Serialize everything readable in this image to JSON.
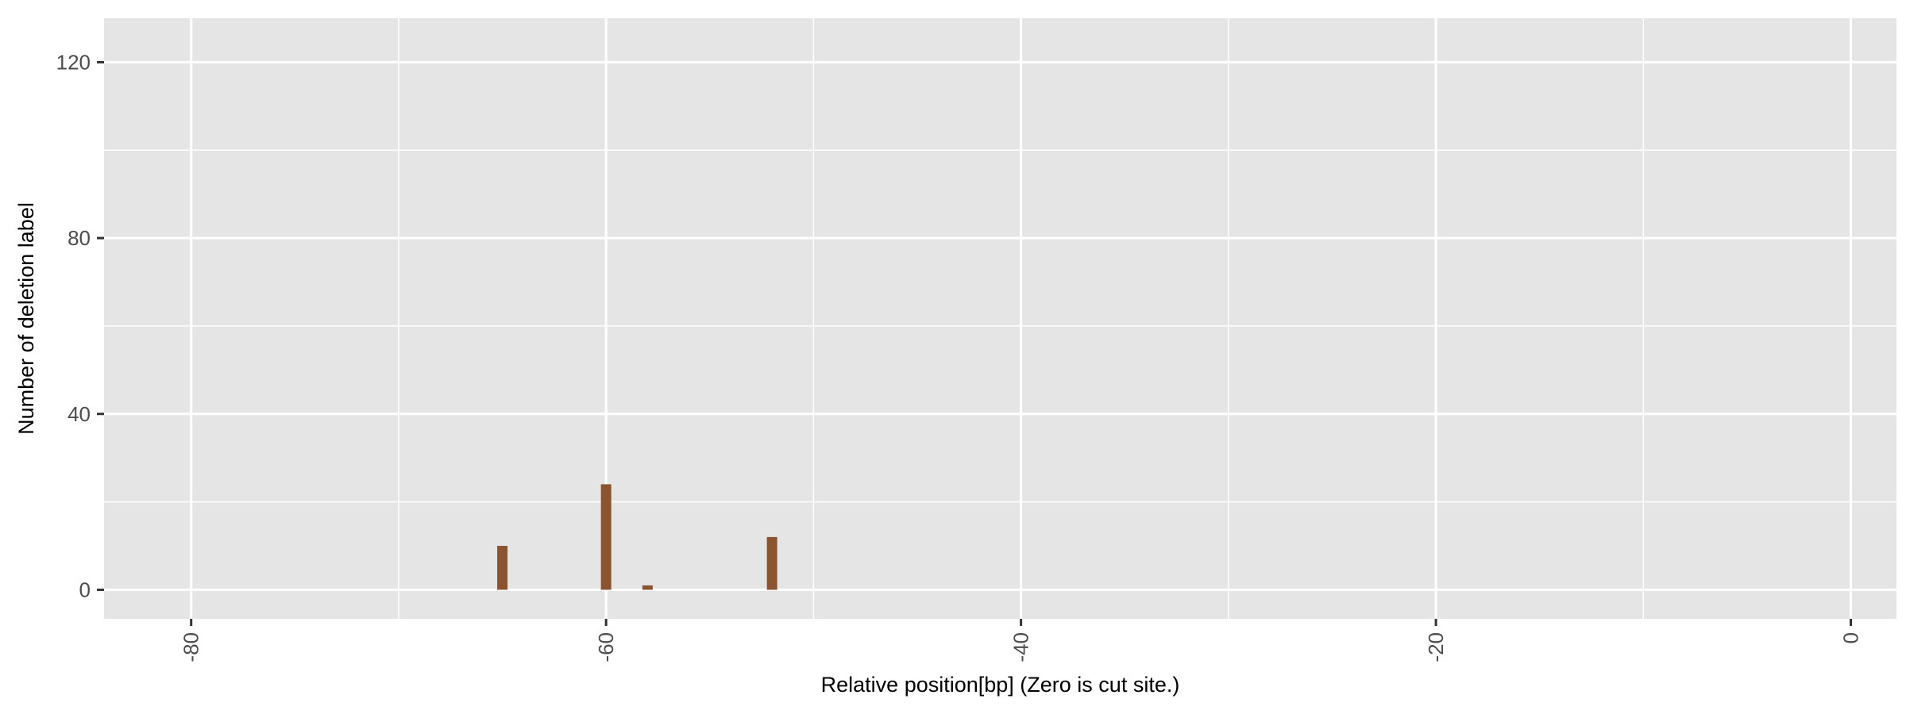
{
  "chart_data": {
    "type": "bar",
    "xlabel": "Relative position[bp] (Zero is cut site.)",
    "ylabel": "Number of deletion label",
    "xlim": [
      -84.2,
      2.2
    ],
    "ylim": [
      -6.6,
      130
    ],
    "x_ticks": [
      -80,
      -60,
      -40,
      -20,
      0
    ],
    "x_tick_labels": [
      "-80",
      "-60",
      "-40",
      "-20",
      "0"
    ],
    "y_ticks": [
      0,
      40,
      80,
      120
    ],
    "y_tick_labels": [
      "0",
      "40",
      "80",
      "120"
    ],
    "x": [
      -65,
      -60,
      -58,
      -52
    ],
    "values": [
      10,
      24,
      1,
      12
    ],
    "bar_color": "#8b5431",
    "panel_background": "#e5e5e5",
    "grid": true,
    "x_tick_label_rotation": "vertical"
  }
}
